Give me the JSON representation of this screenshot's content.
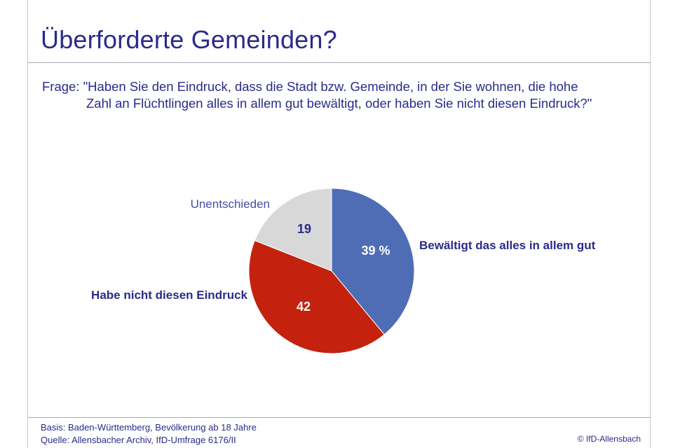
{
  "title": "Überforderte Gemeinden?",
  "question": {
    "line1": "Frage: \"Haben Sie den Eindruck, dass die Stadt bzw. Gemeinde, in der Sie wohnen, die hohe",
    "line2": "Zahl an Flüchtlingen alles in allem gut bewältigt, oder haben Sie nicht diesen Eindruck?\""
  },
  "chart_data": {
    "type": "pie",
    "slices": [
      {
        "label": "Bewältigt das alles in allem gut",
        "value": 39,
        "value_label": "39 %",
        "color": "#4f6db5"
      },
      {
        "label": "Habe nicht diesen Eindruck",
        "value": 42,
        "value_label": "42",
        "color": "#c4210f"
      },
      {
        "label": "Unentschieden",
        "value": 19,
        "value_label": "19",
        "color": "#d8d8d8"
      }
    ]
  },
  "footer": {
    "basis": "Basis: Baden-Württemberg, Bevölkerung ab 18 Jahre",
    "source": "Quelle: Allensbacher Archiv, IfD-Umfrage 6176/II",
    "copyright": "© IfD-Allensbach"
  }
}
